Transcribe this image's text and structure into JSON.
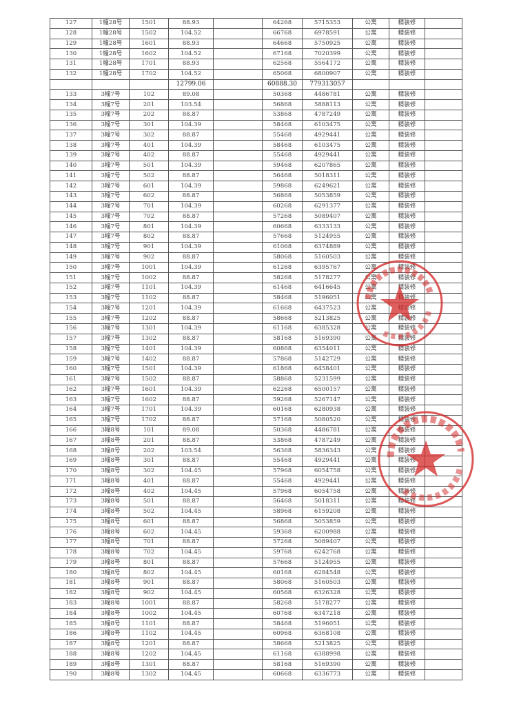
{
  "colors": {
    "border": "#555555",
    "text": "#444444",
    "stamp": "#d42a2a"
  },
  "rows": [
    [
      "127",
      "1幢28号",
      "1501",
      "88.93",
      "",
      "64268",
      "5715353",
      "公寓",
      "精装修",
      ""
    ],
    [
      "128",
      "1幢28号",
      "1502",
      "104.52",
      "",
      "66768",
      "6978591",
      "公寓",
      "精装修",
      ""
    ],
    [
      "129",
      "1幢28号",
      "1601",
      "88.93",
      "",
      "64668",
      "5750925",
      "公寓",
      "精装修",
      ""
    ],
    [
      "130",
      "1幢28号",
      "1602",
      "104.52",
      "",
      "67168",
      "7020399",
      "公寓",
      "精装修",
      ""
    ],
    [
      "131",
      "1幢28号",
      "1701",
      "88.93",
      "",
      "62568",
      "5564172",
      "公寓",
      "精装修",
      ""
    ],
    [
      "132",
      "1幢28号",
      "1702",
      "104.52",
      "",
      "65068",
      "6800907",
      "公寓",
      "精装修",
      ""
    ],
    [
      "",
      "",
      "",
      "12799.06",
      "",
      "60888.30",
      "779313057",
      "",
      "",
      ""
    ],
    [
      "133",
      "3幢7号",
      "102",
      "89.08",
      "",
      "50368",
      "4486781",
      "公寓",
      "精装修",
      ""
    ],
    [
      "134",
      "3幢7号",
      "201",
      "103.54",
      "",
      "56868",
      "5888113",
      "公寓",
      "精装修",
      ""
    ],
    [
      "135",
      "3幢7号",
      "202",
      "88.87",
      "",
      "53868",
      "4787249",
      "公寓",
      "精装修",
      ""
    ],
    [
      "136",
      "3幢7号",
      "301",
      "104.39",
      "",
      "58468",
      "6103475",
      "公寓",
      "精装修",
      ""
    ],
    [
      "137",
      "3幢7号",
      "302",
      "88.87",
      "",
      "55468",
      "4929441",
      "公寓",
      "精装修",
      ""
    ],
    [
      "138",
      "3幢7号",
      "401",
      "104.39",
      "",
      "58468",
      "6103475",
      "公寓",
      "精装修",
      ""
    ],
    [
      "139",
      "3幢7号",
      "402",
      "88.87",
      "",
      "55468",
      "4929441",
      "公寓",
      "精装修",
      ""
    ],
    [
      "140",
      "3幢7号",
      "501",
      "104.39",
      "",
      "59468",
      "6207865",
      "公寓",
      "精装修",
      ""
    ],
    [
      "141",
      "3幢7号",
      "502",
      "88.87",
      "",
      "56468",
      "5018311",
      "公寓",
      "精装修",
      ""
    ],
    [
      "142",
      "3幢7号",
      "601",
      "104.39",
      "",
      "59868",
      "6249621",
      "公寓",
      "精装修",
      ""
    ],
    [
      "143",
      "3幢7号",
      "602",
      "88.87",
      "",
      "56868",
      "5053859",
      "公寓",
      "精装修",
      ""
    ],
    [
      "144",
      "3幢7号",
      "701",
      "104.39",
      "",
      "60268",
      "6291377",
      "公寓",
      "精装修",
      ""
    ],
    [
      "145",
      "3幢7号",
      "702",
      "88.87",
      "",
      "57268",
      "5089407",
      "公寓",
      "精装修",
      ""
    ],
    [
      "146",
      "3幢7号",
      "801",
      "104.39",
      "",
      "60668",
      "6333133",
      "公寓",
      "精装修",
      ""
    ],
    [
      "147",
      "3幢7号",
      "802",
      "88.87",
      "",
      "57668",
      "5124955",
      "公寓",
      "精装修",
      ""
    ],
    [
      "148",
      "3幢7号",
      "901",
      "104.39",
      "",
      "61068",
      "6374889",
      "公寓",
      "精装修",
      ""
    ],
    [
      "149",
      "3幢7号",
      "902",
      "88.87",
      "",
      "58068",
      "5160503",
      "公寓",
      "精装修",
      ""
    ],
    [
      "150",
      "3幢7号",
      "1001",
      "104.39",
      "",
      "61268",
      "6395767",
      "公寓",
      "精装修",
      ""
    ],
    [
      "151",
      "3幢7号",
      "1002",
      "88.87",
      "",
      "58268",
      "5178277",
      "公寓",
      "精装修",
      ""
    ],
    [
      "152",
      "3幢7号",
      "1101",
      "104.39",
      "",
      "61468",
      "6416645",
      "公寓",
      "精装修",
      ""
    ],
    [
      "153",
      "3幢7号",
      "1102",
      "88.87",
      "",
      "58468",
      "5196051",
      "公寓",
      "精装修",
      ""
    ],
    [
      "154",
      "3幢7号",
      "1201",
      "104.39",
      "",
      "61668",
      "6437523",
      "公寓",
      "精装修",
      ""
    ],
    [
      "155",
      "3幢7号",
      "1202",
      "88.87",
      "",
      "58668",
      "5213825",
      "公寓",
      "精装修",
      ""
    ],
    [
      "156",
      "3幢7号",
      "1301",
      "104.39",
      "",
      "61168",
      "6385328",
      "公寓",
      "精装修",
      ""
    ],
    [
      "157",
      "3幢7号",
      "1302",
      "88.87",
      "",
      "58168",
      "5169390",
      "公寓",
      "精装修",
      ""
    ],
    [
      "158",
      "3幢7号",
      "1401",
      "104.39",
      "",
      "60868",
      "6354011",
      "公寓",
      "精装修",
      ""
    ],
    [
      "159",
      "3幢7号",
      "1402",
      "88.87",
      "",
      "57868",
      "5142729",
      "公寓",
      "精装修",
      ""
    ],
    [
      "160",
      "3幢7号",
      "1501",
      "104.39",
      "",
      "61868",
      "6458401",
      "公寓",
      "精装修",
      ""
    ],
    [
      "161",
      "3幢7号",
      "1502",
      "88.87",
      "",
      "58868",
      "5231599",
      "公寓",
      "精装修",
      ""
    ],
    [
      "162",
      "3幢7号",
      "1601",
      "104.39",
      "",
      "62268",
      "6500157",
      "公寓",
      "精装修",
      ""
    ],
    [
      "163",
      "3幢7号",
      "1602",
      "88.87",
      "",
      "59268",
      "5267147",
      "公寓",
      "精装修",
      ""
    ],
    [
      "164",
      "3幢7号",
      "1701",
      "104.39",
      "",
      "60168",
      "6280938",
      "公寓",
      "精装修",
      ""
    ],
    [
      "165",
      "3幢7号",
      "1702",
      "88.87",
      "",
      "57168",
      "5080520",
      "公寓",
      "精装修",
      ""
    ],
    [
      "166",
      "3幢8号",
      "101",
      "89.08",
      "",
      "50368",
      "4486781",
      "公寓",
      "精装修",
      ""
    ],
    [
      "167",
      "3幢8号",
      "201",
      "88.87",
      "",
      "53868",
      "4787249",
      "公寓",
      "精装修",
      ""
    ],
    [
      "168",
      "3幢8号",
      "202",
      "103.54",
      "",
      "56368",
      "5836343",
      "公寓",
      "精装修",
      ""
    ],
    [
      "169",
      "3幢8号",
      "301",
      "88.87",
      "",
      "55468",
      "4929441",
      "公寓",
      "精装修",
      ""
    ],
    [
      "170",
      "3幢8号",
      "302",
      "104.45",
      "",
      "57968",
      "6054758",
      "公寓",
      "精装修",
      ""
    ],
    [
      "171",
      "3幢8号",
      "401",
      "88.87",
      "",
      "55468",
      "4929441",
      "公寓",
      "精装修",
      ""
    ],
    [
      "172",
      "3幢8号",
      "402",
      "104.45",
      "",
      "57968",
      "6054758",
      "公寓",
      "精装修",
      ""
    ],
    [
      "173",
      "3幢8号",
      "501",
      "88.87",
      "",
      "56468",
      "5018311",
      "公寓",
      "精装修",
      ""
    ],
    [
      "174",
      "3幢8号",
      "502",
      "104.45",
      "",
      "58968",
      "6159208",
      "公寓",
      "精装修",
      ""
    ],
    [
      "175",
      "3幢8号",
      "601",
      "88.87",
      "",
      "56868",
      "5053859",
      "公寓",
      "精装修",
      ""
    ],
    [
      "176",
      "3幢8号",
      "602",
      "104.45",
      "",
      "59368",
      "6200988",
      "公寓",
      "精装修",
      ""
    ],
    [
      "177",
      "3幢8号",
      "701",
      "88.87",
      "",
      "57268",
      "5089407",
      "公寓",
      "精装修",
      ""
    ],
    [
      "178",
      "3幢8号",
      "702",
      "104.45",
      "",
      "59768",
      "6242768",
      "公寓",
      "精装修",
      ""
    ],
    [
      "179",
      "3幢8号",
      "801",
      "88.87",
      "",
      "57668",
      "5124955",
      "公寓",
      "精装修",
      ""
    ],
    [
      "180",
      "3幢8号",
      "802",
      "104.45",
      "",
      "60168",
      "6284548",
      "公寓",
      "精装修",
      ""
    ],
    [
      "181",
      "3幢8号",
      "901",
      "88.87",
      "",
      "58068",
      "5160503",
      "公寓",
      "精装修",
      ""
    ],
    [
      "182",
      "3幢8号",
      "902",
      "104.45",
      "",
      "60568",
      "6326328",
      "公寓",
      "精装修",
      ""
    ],
    [
      "183",
      "3幢8号",
      "1001",
      "88.87",
      "",
      "58268",
      "5178277",
      "公寓",
      "精装修",
      ""
    ],
    [
      "184",
      "3幢8号",
      "1002",
      "104.45",
      "",
      "60768",
      "6347218",
      "公寓",
      "精装修",
      ""
    ],
    [
      "185",
      "3幢8号",
      "1101",
      "88.87",
      "",
      "58468",
      "5196051",
      "公寓",
      "精装修",
      ""
    ],
    [
      "186",
      "3幢8号",
      "1102",
      "104.45",
      "",
      "60968",
      "6368108",
      "公寓",
      "精装修",
      ""
    ],
    [
      "187",
      "3幢8号",
      "1201",
      "88.87",
      "",
      "58668",
      "5213825",
      "公寓",
      "精装修",
      ""
    ],
    [
      "188",
      "3幢8号",
      "1202",
      "104.45",
      "",
      "61168",
      "6388998",
      "公寓",
      "精装修",
      ""
    ],
    [
      "189",
      "3幢8号",
      "1301",
      "88.87",
      "",
      "58168",
      "5169390",
      "公寓",
      "精装修",
      ""
    ],
    [
      "190",
      "3幢8号",
      "1302",
      "104.45",
      "",
      "60668",
      "6336773",
      "公寓",
      "精装修",
      ""
    ]
  ]
}
